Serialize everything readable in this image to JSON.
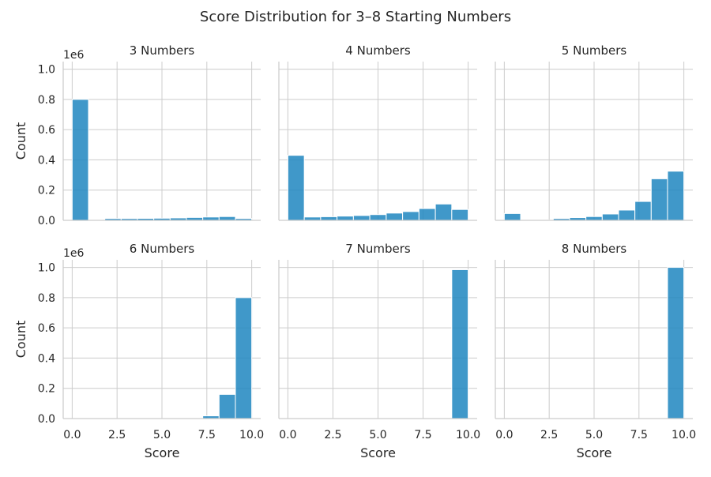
{
  "chart_data": {
    "type": "bar",
    "title": "Score Distribution for 3–8 Starting Numbers",
    "xlabel": "Score",
    "ylabel": "Count",
    "y_offset_label": "1e6",
    "xlim": [
      -0.5,
      10.5
    ],
    "ylim": [
      0,
      1.05
    ],
    "xticks": [
      "0.0",
      "2.5",
      "5.0",
      "7.5",
      "10.0"
    ],
    "yticks": [
      "0.0",
      "0.2",
      "0.4",
      "0.6",
      "0.8",
      "1.0"
    ],
    "grid": true,
    "bin_edges": [
      0,
      0.909,
      1.818,
      2.727,
      3.636,
      4.545,
      5.455,
      6.364,
      7.273,
      8.182,
      9.091,
      10.0
    ],
    "panels": [
      {
        "title": "3 Numbers",
        "values": [
          0.8,
          0.0,
          0.012,
          0.012,
          0.013,
          0.014,
          0.016,
          0.019,
          0.022,
          0.025,
          0.012
        ]
      },
      {
        "title": "4 Numbers",
        "values": [
          0.43,
          0.022,
          0.024,
          0.028,
          0.032,
          0.038,
          0.048,
          0.058,
          0.078,
          0.108,
          0.072
        ]
      },
      {
        "title": "5 Numbers",
        "values": [
          0.045,
          0.002,
          0.003,
          0.012,
          0.018,
          0.025,
          0.042,
          0.068,
          0.125,
          0.275,
          0.325
        ]
      },
      {
        "title": "6 Numbers",
        "values": [
          0,
          0,
          0,
          0,
          0,
          0,
          0,
          0.003,
          0.018,
          0.16,
          0.8
        ]
      },
      {
        "title": "7 Numbers",
        "values": [
          0,
          0,
          0,
          0,
          0,
          0,
          0,
          0,
          0,
          0,
          0.985
        ]
      },
      {
        "title": "8 Numbers",
        "values": [
          0,
          0,
          0,
          0,
          0,
          0,
          0,
          0,
          0,
          0,
          1.0
        ]
      }
    ]
  }
}
